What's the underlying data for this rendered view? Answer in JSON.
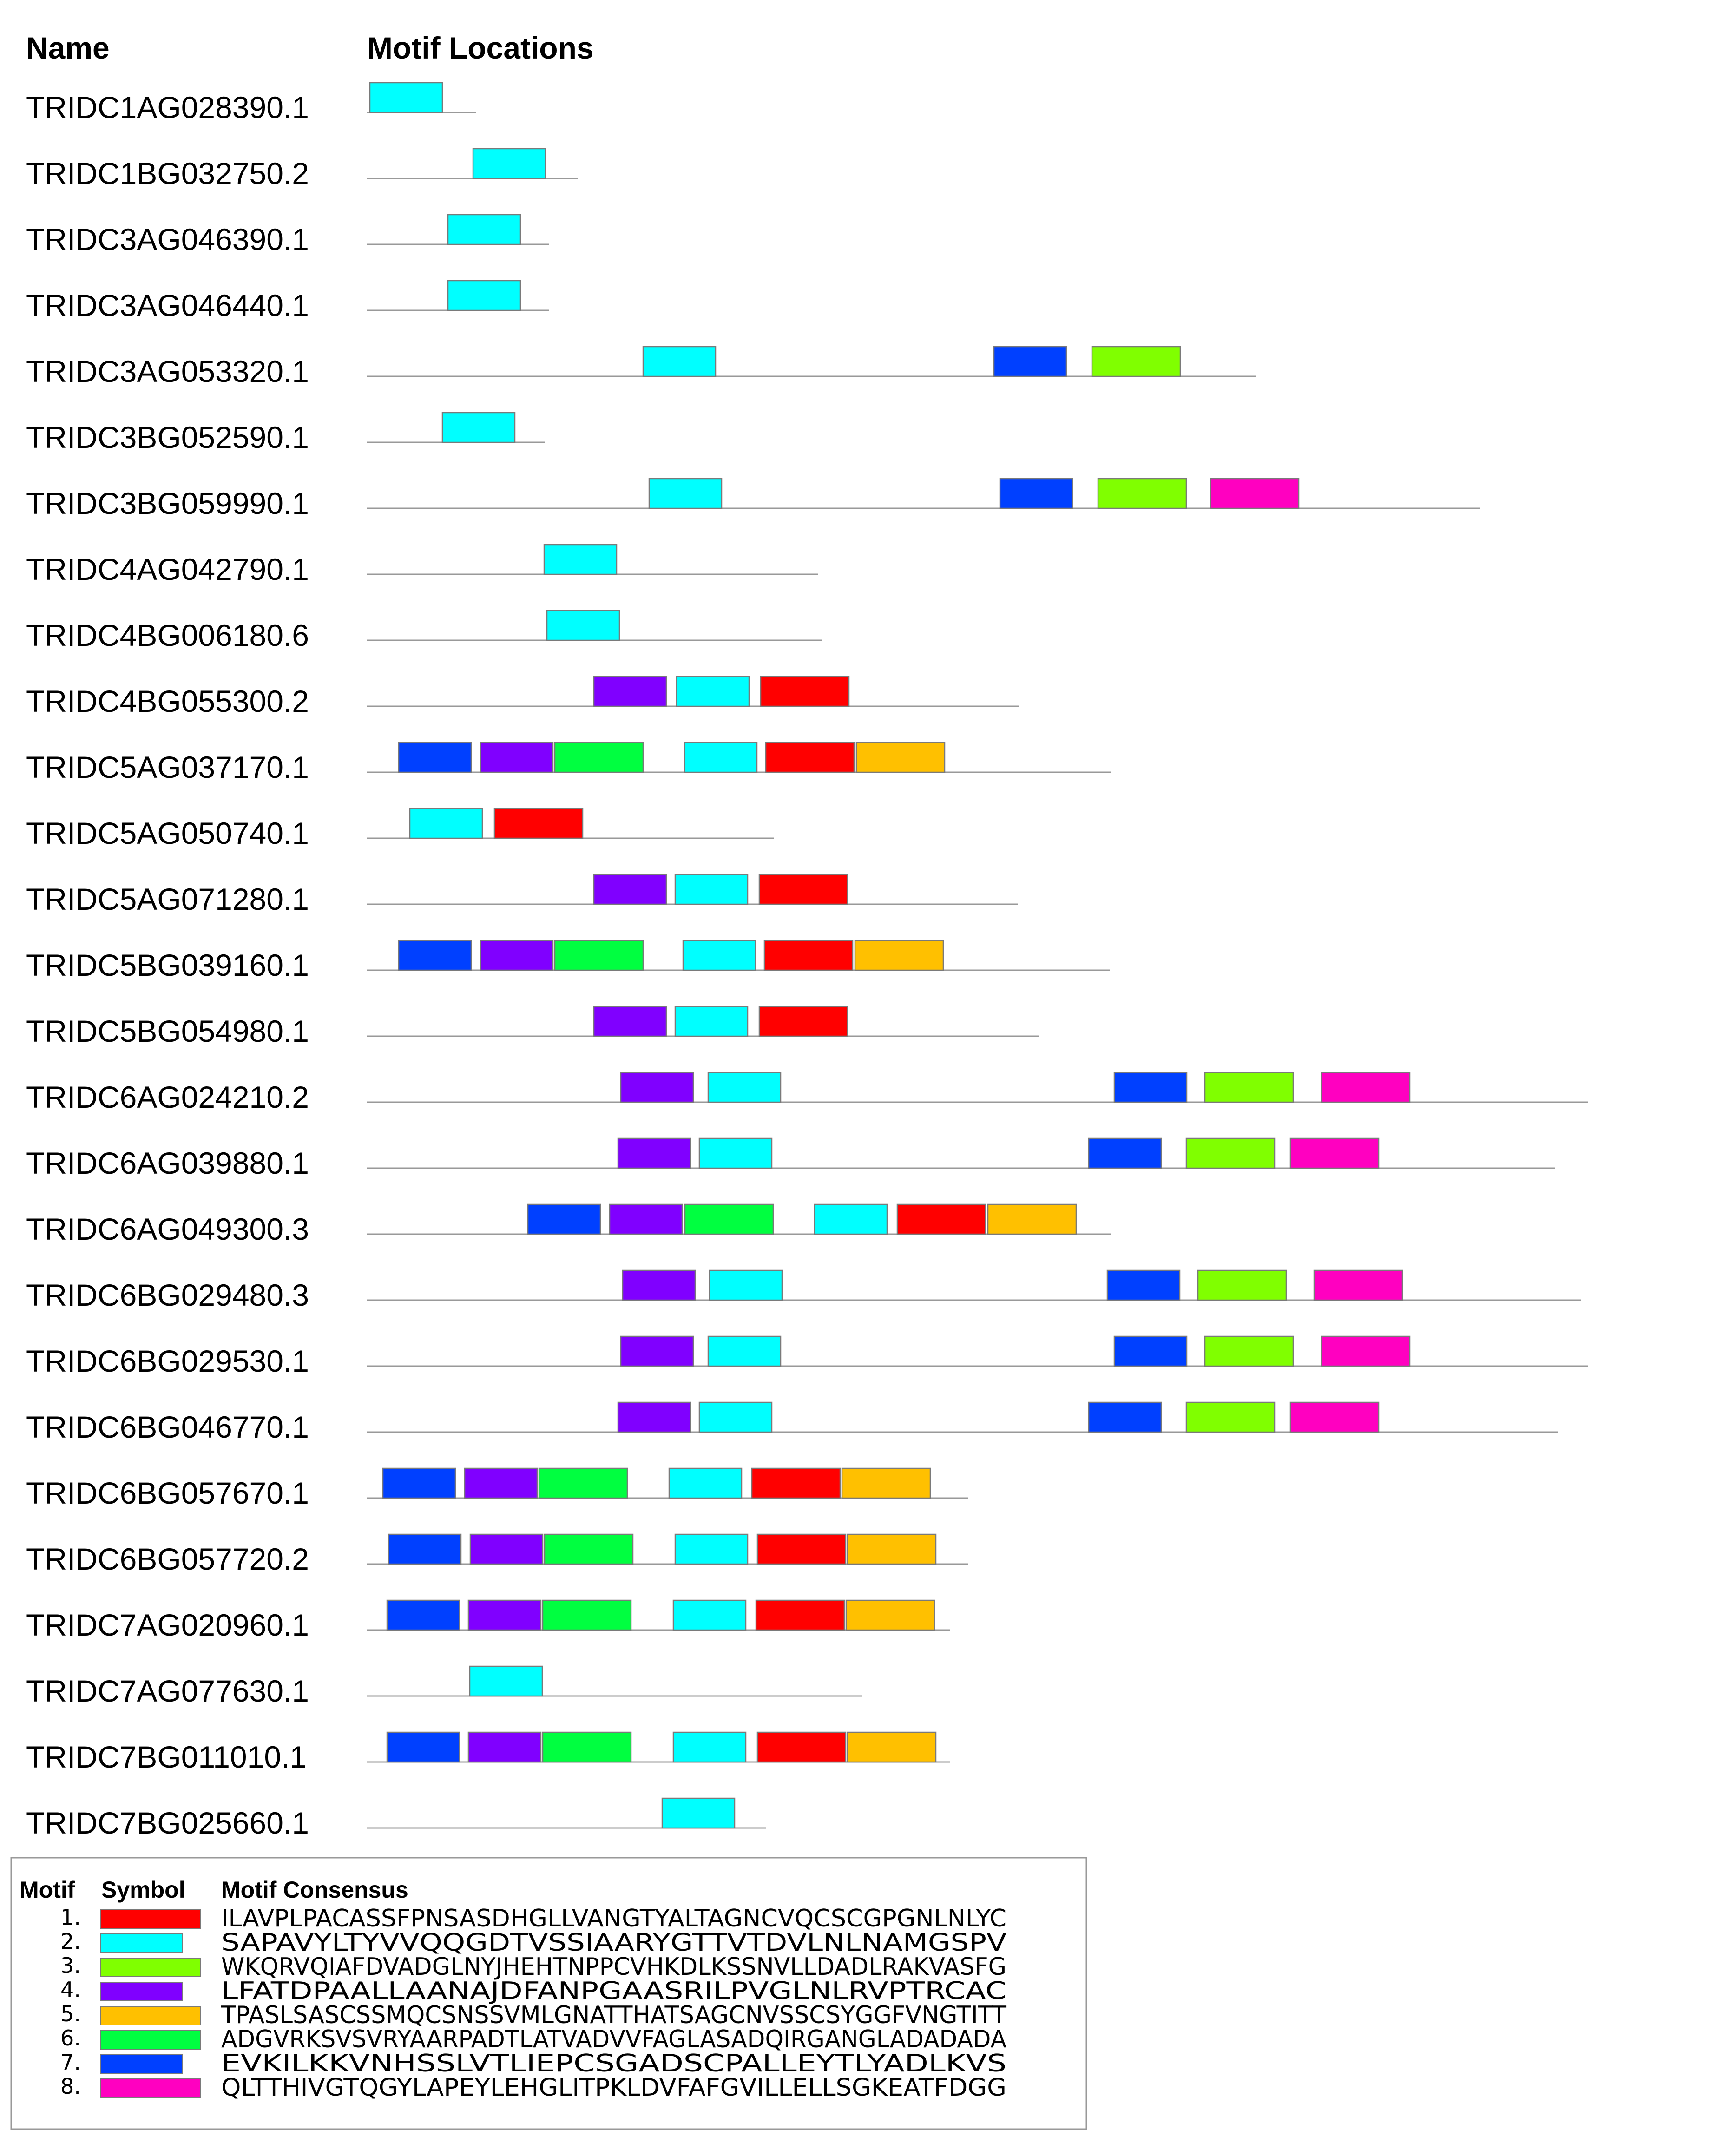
{
  "headers": {
    "name": "Name",
    "locations": "Motif Locations"
  },
  "motifs": [
    {
      "id": 1,
      "color": "#ff0000",
      "consensus": "ILAVPLPACASSFPNSASDHGLLVANGTYALTAGNCVQCSCGPGNLNLYC"
    },
    {
      "id": 2,
      "color": "#00ffff",
      "consensus": "SAPAVYLTYVVQQGDTVSSIAARYGTTVTDVLNLNAMGSPV"
    },
    {
      "id": 3,
      "color": "#80ff00",
      "consensus": "WKQRVQIAFDVADGLNYJHEHTNPPCVHKDLKSSNVLLDADLRAKVASFG"
    },
    {
      "id": 4,
      "color": "#8000ff",
      "consensus": "LFATDPAALLAANAJDFANPGAASRILPVGLNLRVPTRCAC"
    },
    {
      "id": 5,
      "color": "#ffc000",
      "consensus": "TPASLSASCSSMQCSNSSVMLGNATTHATSAGCNVSSCSYGGFVNGTITT"
    },
    {
      "id": 6,
      "color": "#00ff40",
      "consensus": "ADGVRKSVSVRYAARPADTLATVADVVFAGLASADQIRGANGLADADADA"
    },
    {
      "id": 7,
      "color": "#0040ff",
      "consensus": "EVKILKKVNHSSLVTLIEPCSGADSCPALLEYTLYADLKVS"
    },
    {
      "id": 8,
      "color": "#ff00c0",
      "consensus": "QLTTHIVGTQGYLAPEYLEHGLITPKLDVFAFGVILLELLSGKEATFDGG"
    }
  ],
  "legend": {
    "col_motif": "Motif",
    "col_symbol": "Symbol",
    "col_consensus": "Motif Consensus"
  },
  "genes": [
    {
      "name": "TRIDC1AG028390.1",
      "length": 234,
      "hits": [
        {
          "m": 2,
          "s": 6
        }
      ]
    },
    {
      "name": "TRIDC1BG032750.2",
      "length": 454,
      "hits": [
        {
          "m": 2,
          "s": 228
        }
      ]
    },
    {
      "name": "TRIDC3AG046390.1",
      "length": 392,
      "hits": [
        {
          "m": 2,
          "s": 174
        }
      ]
    },
    {
      "name": "TRIDC3AG046440.1",
      "length": 392,
      "hits": [
        {
          "m": 2,
          "s": 174
        }
      ]
    },
    {
      "name": "TRIDC3AG053320.1",
      "length": 1912,
      "hits": [
        {
          "m": 2,
          "s": 594
        },
        {
          "m": 7,
          "s": 1349
        },
        {
          "m": 3,
          "s": 1560
        }
      ]
    },
    {
      "name": "TRIDC3BG052590.1",
      "length": 383,
      "hits": [
        {
          "m": 2,
          "s": 162
        }
      ]
    },
    {
      "name": "TRIDC3BG059990.1",
      "length": 2396,
      "hits": [
        {
          "m": 2,
          "s": 607
        },
        {
          "m": 7,
          "s": 1362
        },
        {
          "m": 3,
          "s": 1573
        },
        {
          "m": 8,
          "s": 1815
        }
      ]
    },
    {
      "name": "TRIDC4AG042790.1",
      "length": 970,
      "hits": [
        {
          "m": 2,
          "s": 381
        }
      ]
    },
    {
      "name": "TRIDC4BG006180.6",
      "length": 979,
      "hits": [
        {
          "m": 2,
          "s": 387
        }
      ]
    },
    {
      "name": "TRIDC4BG055300.2",
      "length": 1404,
      "hits": [
        {
          "m": 4,
          "s": 488
        },
        {
          "m": 2,
          "s": 666
        },
        {
          "m": 1,
          "s": 847
        }
      ]
    },
    {
      "name": "TRIDC5AG037170.1",
      "length": 1601,
      "hits": [
        {
          "m": 7,
          "s": 68
        },
        {
          "m": 6,
          "s": 404
        },
        {
          "m": 4,
          "s": 244
        },
        {
          "m": 2,
          "s": 683
        },
        {
          "m": 1,
          "s": 858
        },
        {
          "m": 5,
          "s": 1053
        }
      ]
    },
    {
      "name": "TRIDC5AG050740.1",
      "length": 876,
      "hits": [
        {
          "m": 2,
          "s": 92
        },
        {
          "m": 1,
          "s": 274
        }
      ]
    },
    {
      "name": "TRIDC5AG071280.1",
      "length": 1401,
      "hits": [
        {
          "m": 4,
          "s": 488
        },
        {
          "m": 2,
          "s": 663
        },
        {
          "m": 1,
          "s": 844
        }
      ]
    },
    {
      "name": "TRIDC5BG039160.1",
      "length": 1598,
      "hits": [
        {
          "m": 7,
          "s": 68
        },
        {
          "m": 6,
          "s": 404
        },
        {
          "m": 4,
          "s": 244
        },
        {
          "m": 2,
          "s": 680
        },
        {
          "m": 1,
          "s": 855
        },
        {
          "m": 5,
          "s": 1050
        }
      ]
    },
    {
      "name": "TRIDC5BG054980.1",
      "length": 1447,
      "hits": [
        {
          "m": 4,
          "s": 488
        },
        {
          "m": 2,
          "s": 663
        },
        {
          "m": 1,
          "s": 844
        }
      ]
    },
    {
      "name": "TRIDC6AG024210.2",
      "length": 2628,
      "hits": [
        {
          "m": 4,
          "s": 546
        },
        {
          "m": 2,
          "s": 734
        },
        {
          "m": 7,
          "s": 1608
        },
        {
          "m": 3,
          "s": 1803
        },
        {
          "m": 8,
          "s": 2054
        }
      ]
    },
    {
      "name": "TRIDC6AG039880.1",
      "length": 2557,
      "hits": [
        {
          "m": 4,
          "s": 540
        },
        {
          "m": 2,
          "s": 715
        },
        {
          "m": 7,
          "s": 1553
        },
        {
          "m": 3,
          "s": 1763
        },
        {
          "m": 8,
          "s": 1987
        }
      ]
    },
    {
      "name": "TRIDC6AG049300.3",
      "length": 1601,
      "hits": [
        {
          "m": 7,
          "s": 346
        },
        {
          "m": 6,
          "s": 684
        },
        {
          "m": 4,
          "s": 522
        },
        {
          "m": 2,
          "s": 963
        },
        {
          "m": 1,
          "s": 1141
        },
        {
          "m": 5,
          "s": 1336
        }
      ]
    },
    {
      "name": "TRIDC6BG029480.3",
      "length": 2612,
      "hits": [
        {
          "m": 4,
          "s": 550
        },
        {
          "m": 2,
          "s": 737
        },
        {
          "m": 7,
          "s": 1593
        },
        {
          "m": 3,
          "s": 1788
        },
        {
          "m": 8,
          "s": 2038
        }
      ]
    },
    {
      "name": "TRIDC6BG029530.1",
      "length": 2628,
      "hits": [
        {
          "m": 4,
          "s": 546
        },
        {
          "m": 2,
          "s": 734
        },
        {
          "m": 7,
          "s": 1608
        },
        {
          "m": 3,
          "s": 1803
        },
        {
          "m": 8,
          "s": 2054
        }
      ]
    },
    {
      "name": "TRIDC6BG046770.1",
      "length": 2563,
      "hits": [
        {
          "m": 4,
          "s": 540
        },
        {
          "m": 2,
          "s": 715
        },
        {
          "m": 7,
          "s": 1553
        },
        {
          "m": 3,
          "s": 1763
        },
        {
          "m": 8,
          "s": 1987
        }
      ]
    },
    {
      "name": "TRIDC6BG057670.1",
      "length": 1294,
      "hits": [
        {
          "m": 7,
          "s": 34
        },
        {
          "m": 6,
          "s": 370
        },
        {
          "m": 4,
          "s": 210
        },
        {
          "m": 2,
          "s": 650
        },
        {
          "m": 1,
          "s": 828
        },
        {
          "m": 5,
          "s": 1022
        }
      ]
    },
    {
      "name": "TRIDC6BG057720.2",
      "length": 1294,
      "hits": [
        {
          "m": 7,
          "s": 46
        },
        {
          "m": 6,
          "s": 382
        },
        {
          "m": 4,
          "s": 222
        },
        {
          "m": 2,
          "s": 663
        },
        {
          "m": 1,
          "s": 840
        },
        {
          "m": 5,
          "s": 1034
        }
      ]
    },
    {
      "name": "TRIDC7AG020960.1",
      "length": 1254,
      "hits": [
        {
          "m": 7,
          "s": 43
        },
        {
          "m": 6,
          "s": 378
        },
        {
          "m": 4,
          "s": 218
        },
        {
          "m": 2,
          "s": 659
        },
        {
          "m": 1,
          "s": 837
        },
        {
          "m": 5,
          "s": 1031
        }
      ]
    },
    {
      "name": "TRIDC7AG077630.1",
      "length": 1065,
      "hits": [
        {
          "m": 2,
          "s": 221
        }
      ]
    },
    {
      "name": "TRIDC7BG011010.1",
      "length": 1254,
      "hits": [
        {
          "m": 7,
          "s": 43
        },
        {
          "m": 6,
          "s": 378
        },
        {
          "m": 4,
          "s": 218
        },
        {
          "m": 2,
          "s": 659
        },
        {
          "m": 1,
          "s": 840
        },
        {
          "m": 5,
          "s": 1034
        }
      ]
    },
    {
      "name": "TRIDC7BG025660.1",
      "length": 858,
      "hits": [
        {
          "m": 2,
          "s": 635
        }
      ]
    }
  ]
}
